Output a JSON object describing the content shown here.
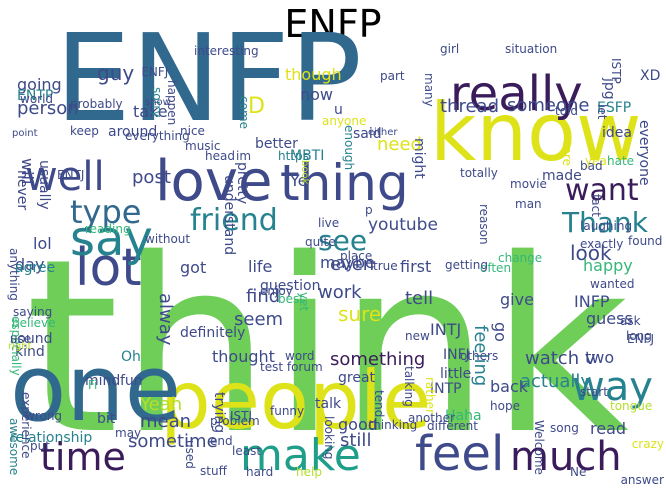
{
  "title": "ENFP",
  "palette": {
    "navy": "#3b1c5a",
    "indigo": "#3e4a89",
    "blue": "#31688e",
    "teal": "#26828e",
    "sea": "#1f9e89",
    "green": "#35b779",
    "lime": "#6ece58",
    "yellowgreen": "#b5de2b",
    "yellow": "#dde318",
    "darkblue": "#2c3f7a"
  },
  "words": [
    {
      "text": "ENFP",
      "color": "blue"
    },
    {
      "text": "think",
      "color": "lime"
    },
    {
      "text": "people",
      "color": "yellow"
    },
    {
      "text": "one",
      "color": "blue"
    },
    {
      "text": "know",
      "color": "yellow"
    },
    {
      "text": "love",
      "color": "indigo"
    },
    {
      "text": "thing",
      "color": "indigo"
    },
    {
      "text": "really",
      "color": "navy"
    },
    {
      "text": "feel",
      "color": "indigo"
    },
    {
      "text": "much",
      "color": "navy"
    },
    {
      "text": "make",
      "color": "sea"
    },
    {
      "text": "time",
      "color": "navy"
    },
    {
      "text": "way",
      "color": "teal"
    },
    {
      "text": "lot",
      "color": "indigo"
    },
    {
      "text": "say",
      "color": "teal"
    },
    {
      "text": "well",
      "color": "indigo"
    },
    {
      "text": "want",
      "color": "navy"
    },
    {
      "text": "friend",
      "color": "teal"
    },
    {
      "text": "Thank",
      "color": "teal"
    },
    {
      "text": "type",
      "color": "blue"
    },
    {
      "text": "see",
      "color": "teal"
    },
    {
      "text": "youtube",
      "color": "indigo"
    },
    {
      "text": "look",
      "color": "indigo"
    },
    {
      "text": "thread",
      "color": "indigo"
    },
    {
      "text": "someone",
      "color": "indigo"
    },
    {
      "text": "though",
      "color": "yellow"
    },
    {
      "text": "now",
      "color": "indigo"
    },
    {
      "text": "guy",
      "color": "indigo"
    },
    {
      "text": "going",
      "color": "indigo"
    },
    {
      "text": "person",
      "color": "indigo"
    },
    {
      "text": "post",
      "color": "indigo"
    },
    {
      "text": "take",
      "color": "indigo"
    },
    {
      "text": "around",
      "color": "indigo"
    },
    {
      "text": "will",
      "color": "indigo"
    },
    {
      "text": "never",
      "color": "indigo"
    },
    {
      "text": "need",
      "color": "yellow"
    },
    {
      "text": "D",
      "color": "yellow"
    },
    {
      "text": "u",
      "color": "indigo"
    },
    {
      "text": "said",
      "color": "indigo"
    },
    {
      "text": "Ye",
      "color": "indigo"
    },
    {
      "text": "maybe",
      "color": "indigo"
    },
    {
      "text": "sure",
      "color": "yellow"
    },
    {
      "text": "work",
      "color": "indigo"
    },
    {
      "text": "seem",
      "color": "indigo"
    },
    {
      "text": "even",
      "color": "indigo"
    },
    {
      "text": "life",
      "color": "indigo"
    },
    {
      "text": "got",
      "color": "indigo"
    },
    {
      "text": "find",
      "color": "indigo"
    },
    {
      "text": "alway",
      "color": "indigo"
    },
    {
      "text": "thought",
      "color": "indigo"
    },
    {
      "text": "something",
      "color": "navy"
    },
    {
      "text": "watch v",
      "color": "indigo"
    },
    {
      "text": "actually",
      "color": "teal"
    },
    {
      "text": "feeling",
      "color": "teal"
    },
    {
      "text": "go",
      "color": "indigo"
    },
    {
      "text": "INFP",
      "color": "indigo"
    },
    {
      "text": "INTJ",
      "color": "indigo"
    },
    {
      "text": "guess",
      "color": "indigo"
    },
    {
      "text": "Yeah",
      "color": "yellowgreen"
    },
    {
      "text": "mean",
      "color": "indigo"
    },
    {
      "text": "sometime",
      "color": "indigo"
    },
    {
      "text": "good",
      "color": "indigo"
    },
    {
      "text": "still",
      "color": "indigo"
    },
    {
      "text": "first",
      "color": "indigo"
    },
    {
      "text": "tell",
      "color": "indigo"
    },
    {
      "text": "give",
      "color": "indigo"
    },
    {
      "text": "happy",
      "color": "green"
    },
    {
      "text": "lol",
      "color": "indigo"
    },
    {
      "text": "day",
      "color": "indigo"
    },
    {
      "text": "Oh",
      "color": "teal"
    },
    {
      "text": "two",
      "color": "indigo"
    },
    {
      "text": "back",
      "color": "indigo"
    },
    {
      "text": "read",
      "color": "indigo"
    },
    {
      "text": "talk",
      "color": "indigo"
    },
    {
      "text": "bit",
      "color": "indigo"
    },
    {
      "text": "fun",
      "color": "indigo"
    },
    {
      "text": "mind",
      "color": "indigo"
    },
    {
      "text": "sound",
      "color": "indigo"
    },
    {
      "text": "kind",
      "color": "indigo"
    },
    {
      "text": "relationship",
      "color": "teal"
    },
    {
      "text": "usually",
      "color": "indigo"
    },
    {
      "text": "pretty",
      "color": "indigo"
    },
    {
      "text": "better",
      "color": "indigo"
    },
    {
      "text": "understand",
      "color": "indigo"
    },
    {
      "text": "ENTP",
      "color": "teal"
    },
    {
      "text": "XD",
      "color": "indigo"
    },
    {
      "text": "everyone",
      "color": "indigo"
    },
    {
      "text": "ESFP",
      "color": "teal"
    },
    {
      "text": "jpg",
      "color": "indigo"
    },
    {
      "text": "ISTP",
      "color": "indigo"
    },
    {
      "text": "INFJ",
      "color": "indigo"
    },
    {
      "text": "ENFJ",
      "color": "indigo"
    },
    {
      "text": "INTP",
      "color": "indigo"
    },
    {
      "text": "ISTJ",
      "color": "indigo"
    },
    {
      "text": "ENTJ",
      "color": "indigo"
    },
    {
      "text": "MBTI",
      "color": "teal"
    },
    {
      "text": "Haha",
      "color": "green"
    },
    {
      "text": "little",
      "color": "indigo"
    },
    {
      "text": "trying",
      "color": "indigo"
    },
    {
      "text": "definitely",
      "color": "indigo"
    },
    {
      "text": "question",
      "color": "indigo"
    },
    {
      "text": "great",
      "color": "indigo"
    },
    {
      "text": "anything",
      "color": "indigo"
    },
    {
      "text": "agree",
      "color": "teal"
    },
    {
      "text": "idea",
      "color": "indigo"
    },
    {
      "text": "made",
      "color": "indigo"
    },
    {
      "text": "might",
      "color": "indigo"
    },
    {
      "text": "probably",
      "color": "indigo"
    },
    {
      "text": "interesting",
      "color": "indigo"
    },
    {
      "text": "sorry",
      "color": "teal"
    },
    {
      "text": "come",
      "color": "teal"
    },
    {
      "text": "happen",
      "color": "indigo"
    },
    {
      "text": "world",
      "color": "indigo"
    },
    {
      "text": "point",
      "color": "indigo"
    },
    {
      "text": "music",
      "color": "indigo"
    },
    {
      "text": "https",
      "color": "teal"
    },
    {
      "text": "nice",
      "color": "indigo"
    },
    {
      "text": "head",
      "color": "indigo"
    },
    {
      "text": "im",
      "color": "indigo"
    },
    {
      "text": "everything",
      "color": "indigo"
    },
    {
      "text": "keep",
      "color": "indigo"
    },
    {
      "text": "show",
      "color": "indigo"
    },
    {
      "text": "book",
      "color": "yellowgreen"
    },
    {
      "text": "enough",
      "color": "teal"
    },
    {
      "text": "either",
      "color": "indigo"
    },
    {
      "text": "anyone",
      "color": "yellow"
    },
    {
      "text": "part",
      "color": "indigo"
    },
    {
      "text": "many",
      "color": "indigo"
    },
    {
      "text": "girl",
      "color": "indigo"
    },
    {
      "text": "situation",
      "color": "indigo"
    },
    {
      "text": "let",
      "color": "indigo"
    },
    {
      "text": "told",
      "color": "indigo"
    },
    {
      "text": "care",
      "color": "yellow"
    },
    {
      "text": "year",
      "color": "yellow"
    },
    {
      "text": "totally",
      "color": "indigo"
    },
    {
      "text": "reason",
      "color": "indigo"
    },
    {
      "text": "movie",
      "color": "indigo"
    },
    {
      "text": "man",
      "color": "indigo"
    },
    {
      "text": "bad",
      "color": "indigo"
    },
    {
      "text": "hate",
      "color": "green"
    },
    {
      "text": "fact",
      "color": "indigo"
    },
    {
      "text": "laughing",
      "color": "indigo"
    },
    {
      "text": "exactly",
      "color": "indigo"
    },
    {
      "text": "found",
      "color": "indigo"
    },
    {
      "text": "often",
      "color": "green"
    },
    {
      "text": "change",
      "color": "green"
    },
    {
      "text": "wanted",
      "color": "indigo"
    },
    {
      "text": "ask",
      "color": "indigo"
    },
    {
      "text": "reading",
      "color": "green"
    },
    {
      "text": "without",
      "color": "indigo"
    },
    {
      "text": "quite",
      "color": "indigo"
    },
    {
      "text": "enjoy",
      "color": "indigo"
    },
    {
      "text": "best",
      "color": "green"
    },
    {
      "text": "yet",
      "color": "green"
    },
    {
      "text": "especially",
      "color": "green"
    },
    {
      "text": "believe",
      "color": "green"
    },
    {
      "text": "use",
      "color": "indigo"
    },
    {
      "text": "saying",
      "color": "indigo"
    },
    {
      "text": "p",
      "color": "indigo"
    },
    {
      "text": "live",
      "color": "indigo"
    },
    {
      "text": "place",
      "color": "indigo"
    },
    {
      "text": "getting",
      "color": "indigo"
    },
    {
      "text": "true",
      "color": "indigo"
    },
    {
      "text": "Fi",
      "color": "green"
    },
    {
      "text": "test forum",
      "color": "indigo"
    },
    {
      "text": "word",
      "color": "indigo"
    },
    {
      "text": "new",
      "color": "indigo"
    },
    {
      "text": "start",
      "color": "indigo"
    },
    {
      "text": "others",
      "color": "indigo"
    },
    {
      "text": "talking",
      "color": "indigo"
    },
    {
      "text": "tend",
      "color": "indigo"
    },
    {
      "text": "right",
      "color": "yellowgreen"
    },
    {
      "text": "experience",
      "color": "indigo"
    },
    {
      "text": "wrong",
      "color": "indigo"
    },
    {
      "text": "may",
      "color": "indigo"
    },
    {
      "text": "awesome",
      "color": "teal"
    },
    {
      "text": "put",
      "color": "indigo"
    },
    {
      "text": "used",
      "color": "indigo"
    },
    {
      "text": "end",
      "color": "indigo"
    },
    {
      "text": "funny",
      "color": "indigo"
    },
    {
      "text": "looking",
      "color": "indigo"
    },
    {
      "text": "problem",
      "color": "indigo"
    },
    {
      "text": "least",
      "color": "indigo"
    },
    {
      "text": "stuff",
      "color": "indigo"
    },
    {
      "text": "hard",
      "color": "indigo"
    },
    {
      "text": "help",
      "color": "yellowgreen"
    },
    {
      "text": "another",
      "color": "indigo"
    },
    {
      "text": "different",
      "color": "indigo"
    },
    {
      "text": "hope",
      "color": "indigo"
    },
    {
      "text": "song",
      "color": "indigo"
    },
    {
      "text": "Ne",
      "color": "indigo"
    },
    {
      "text": "answer",
      "color": "indigo"
    },
    {
      "text": "Welcome",
      "color": "indigo"
    },
    {
      "text": "rather",
      "color": "yellow"
    },
    {
      "text": "crazy",
      "color": "yellow"
    },
    {
      "text": "tongue",
      "color": "yellowgreen"
    },
    {
      "text": "long",
      "color": "indigo"
    },
    {
      "text": "thinking",
      "color": "indigo"
    },
    {
      "text": "ENFJ",
      "color": "indigo"
    }
  ]
}
